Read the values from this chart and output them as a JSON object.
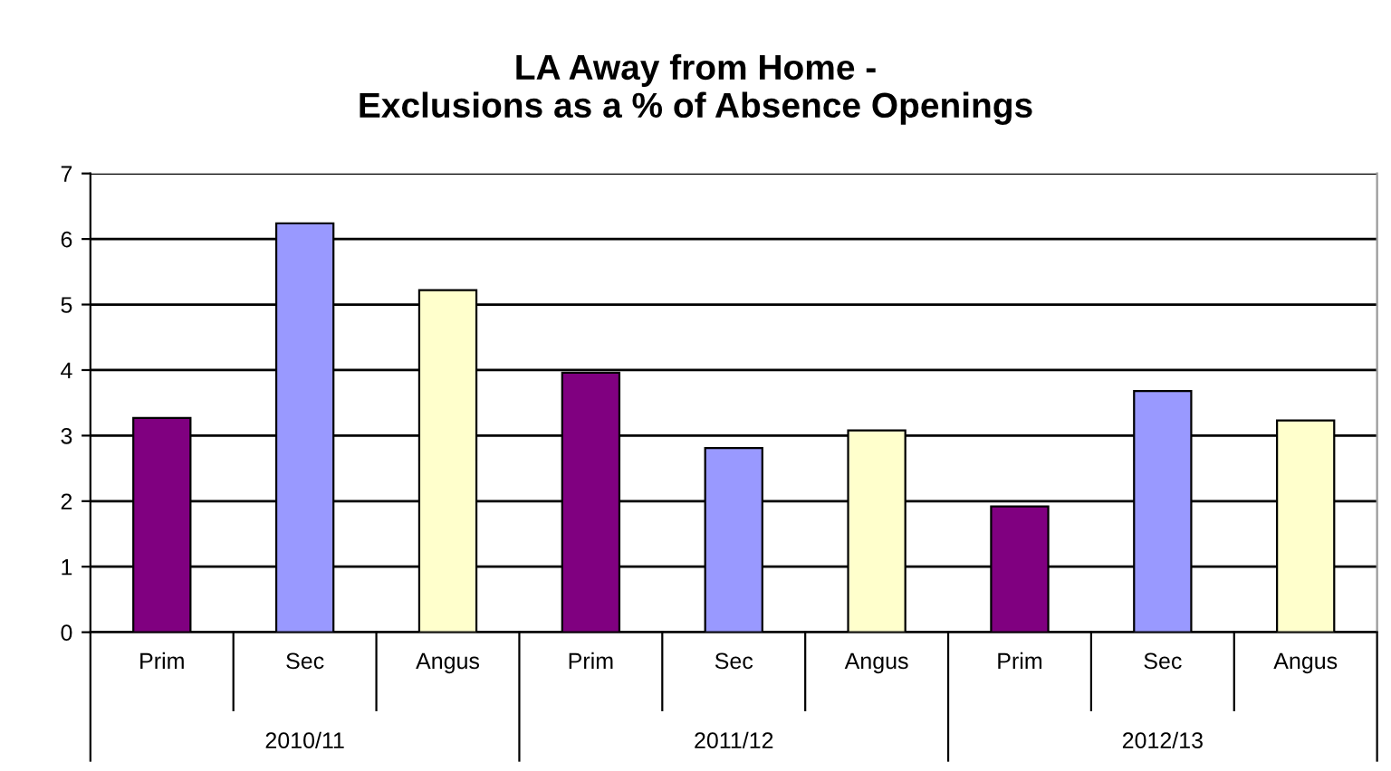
{
  "chart_data": {
    "type": "bar",
    "title": "LA Away from Home -\nExclusions as a % of Absence Openings",
    "categories": [
      "Prim",
      "Sec",
      "Angus",
      "Prim",
      "Sec",
      "Angus",
      "Prim",
      "Sec",
      "Angus"
    ],
    "values": [
      3.27,
      6.24,
      5.22,
      3.96,
      2.81,
      3.08,
      1.92,
      3.68,
      3.23
    ],
    "colors": [
      "#800080",
      "#9999ff",
      "#ffffcc",
      "#800080",
      "#9999ff",
      "#ffffcc",
      "#800080",
      "#9999ff",
      "#ffffcc"
    ],
    "annotations": [
      "2010/11",
      "2011/12",
      "2012/13"
    ],
    "ylim": [
      0,
      7
    ],
    "yticks": [
      0,
      1,
      2,
      3,
      4,
      5,
      6,
      7
    ],
    "grid": "y"
  }
}
